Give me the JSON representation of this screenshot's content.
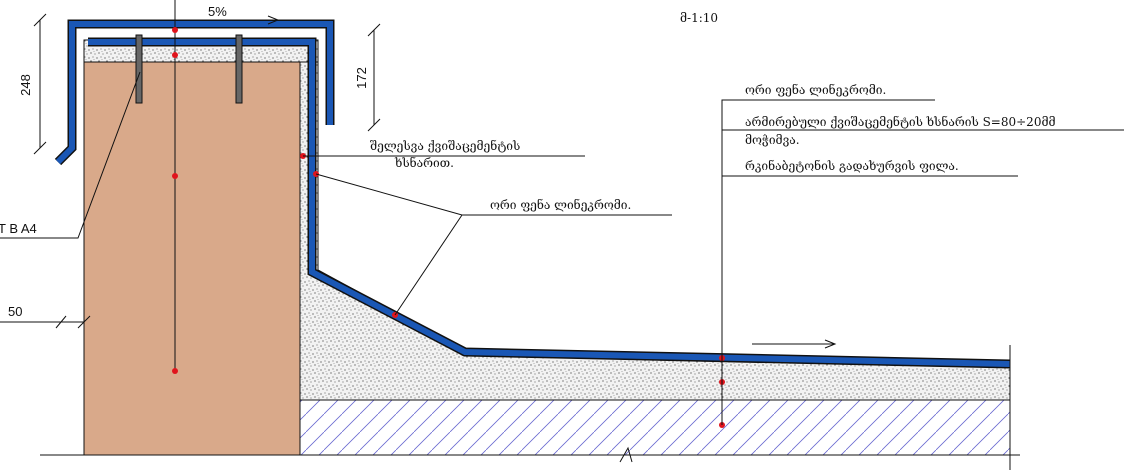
{
  "scale": "მ-1:10",
  "slope": "5%",
  "dimensions": {
    "cap_height": 248,
    "flashing_height": 172,
    "wall_offset": 50
  },
  "labels": {
    "fastener": "T B A4",
    "plaster": [
      "შელესვა ქვიშაცემენტის",
      "ხსნარით."
    ],
    "membrane_wall": "ორი ფენა ლინეკრომი.",
    "membrane_roof": "ორი ფენა ლინეკრომი.",
    "screed": [
      "არმირებული ქვიშაცემენტის ხსნარის S=80÷20მმ",
      "მოჭიმვა."
    ],
    "slab": "რკინაბეტონის გადახურვის ფილა."
  }
}
